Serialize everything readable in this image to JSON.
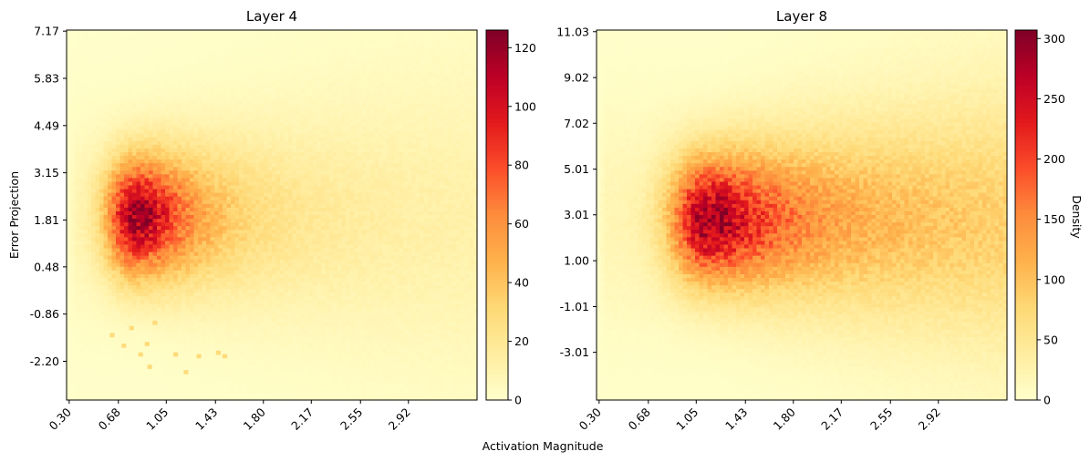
{
  "figure": {
    "shared_xlabel": "Activation Magnitude",
    "shared_ylabel": "Error Projection",
    "colorbar_label": "Density",
    "colormap": [
      "#ffffcc",
      "#ffeda0",
      "#fed976",
      "#feb24c",
      "#fd8d3c",
      "#fc4e2a",
      "#e31a1c",
      "#bd0026",
      "#800026"
    ]
  },
  "chart_data": [
    {
      "type": "heatmap",
      "title": "Layer 4",
      "xlabel": "Activation Magnitude",
      "ylabel": "Error Projection",
      "xlim": [
        0.28,
        3.45
      ],
      "ylim": [
        -3.3,
        7.2
      ],
      "x_ticks": [
        "0.30",
        "0.68",
        "1.05",
        "1.43",
        "1.80",
        "2.17",
        "2.55",
        "2.92"
      ],
      "y_ticks": [
        "7.17",
        "5.83",
        "4.49",
        "3.15",
        "1.81",
        "0.48",
        "-0.86",
        "-2.20"
      ],
      "bins": [
        100,
        100
      ],
      "color_range": [
        0,
        126
      ],
      "colorbar_ticks": [
        "0",
        "20",
        "40",
        "60",
        "80",
        "100",
        "120"
      ],
      "peak": {
        "x": 0.82,
        "y": 1.9,
        "density": 120
      },
      "outliers": [
        [
          0.63,
          -1.45
        ],
        [
          0.72,
          -1.75
        ],
        [
          0.78,
          -1.25
        ],
        [
          0.85,
          -2.0
        ],
        [
          0.9,
          -1.7
        ],
        [
          0.96,
          -1.1
        ],
        [
          0.92,
          -2.35
        ],
        [
          1.12,
          -2.0
        ],
        [
          1.3,
          -2.05
        ],
        [
          1.45,
          -1.95
        ],
        [
          1.5,
          -2.05
        ],
        [
          1.2,
          -2.5
        ]
      ]
    },
    {
      "type": "heatmap",
      "title": "Layer 8",
      "xlabel": "Activation Magnitude",
      "ylabel": "",
      "xlim": [
        0.28,
        3.45
      ],
      "ylim": [
        -5.1,
        11.1
      ],
      "x_ticks": [
        "0.30",
        "0.68",
        "1.05",
        "1.43",
        "1.80",
        "2.17",
        "2.55",
        "2.92"
      ],
      "y_ticks": [
        "11.03",
        "9.02",
        "7.02",
        "5.01",
        "3.01",
        "1.00",
        "-1.01",
        "-3.01"
      ],
      "bins": [
        100,
        100
      ],
      "color_range": [
        0,
        307
      ],
      "colorbar_ticks": [
        "0",
        "50",
        "100",
        "150",
        "200",
        "250",
        "300"
      ],
      "colorbar_label": "Density",
      "peak": {
        "x": 1.15,
        "y": 2.8,
        "density": 290
      }
    }
  ]
}
